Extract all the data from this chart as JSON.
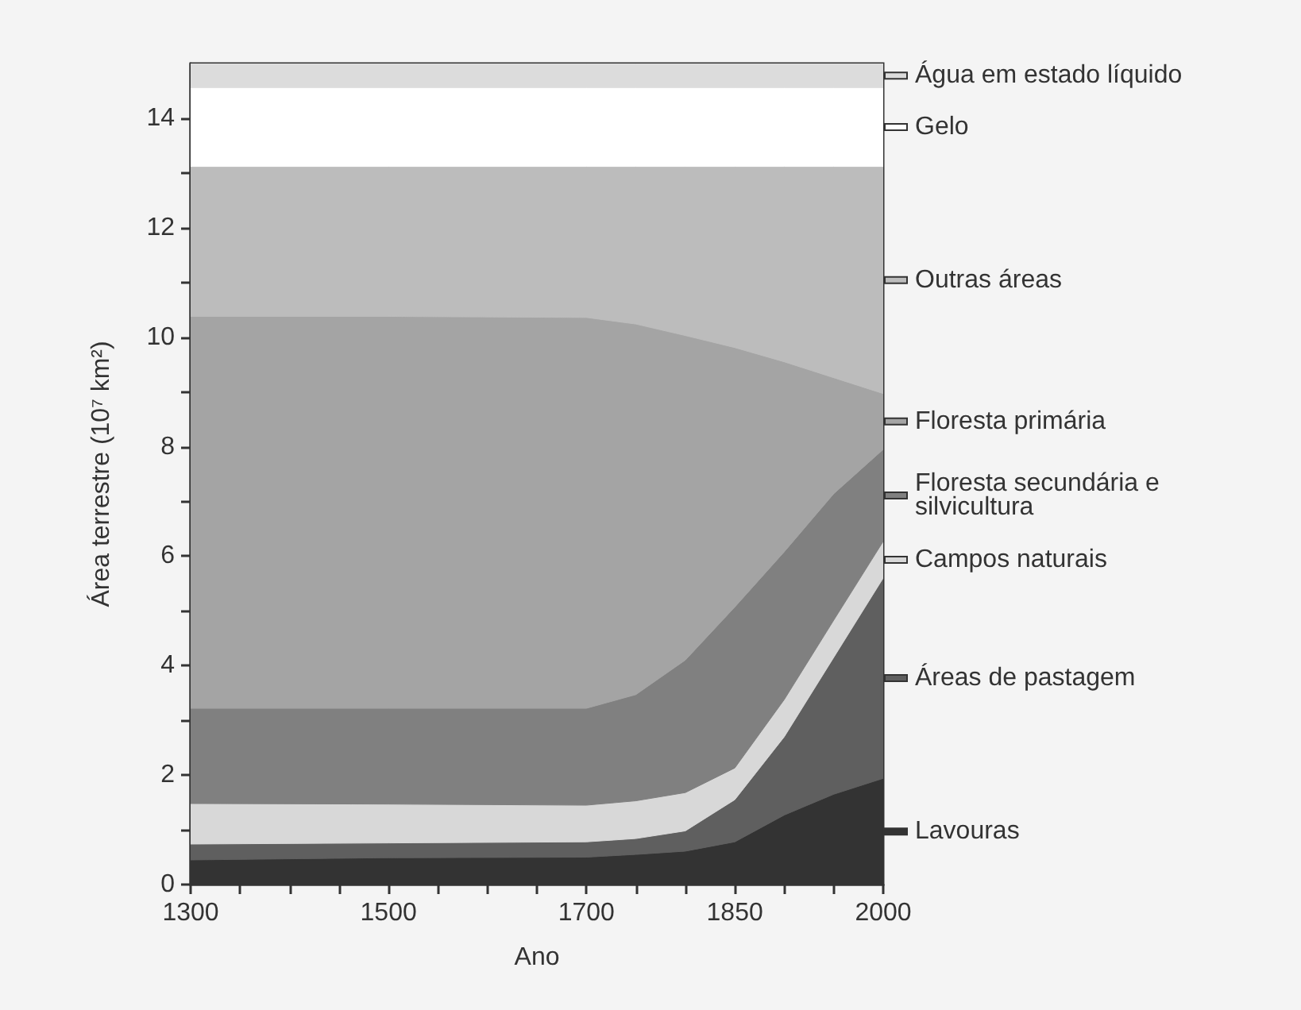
{
  "chart_data": {
    "type": "area",
    "stacked": true,
    "xlabel": "Ano",
    "ylabel": "Área terrestre (10⁷ km²)",
    "x": [
      1300,
      1500,
      1700,
      1750,
      1800,
      1850,
      1900,
      1950,
      2000
    ],
    "xlim": [
      1300,
      2000
    ],
    "xticks": [
      1300,
      {
        "value": 1350,
        "label": null
      },
      {
        "value": 1400,
        "label": null
      },
      {
        "value": 1450,
        "label": null
      },
      1500,
      {
        "value": 1550,
        "label": null
      },
      {
        "value": 1600,
        "label": null
      },
      {
        "value": 1650,
        "label": null
      },
      1700,
      {
        "value": 1750,
        "label": null
      },
      {
        "value": 1800,
        "label": null
      },
      1850,
      {
        "value": 1900,
        "label": null
      },
      {
        "value": 1950,
        "label": null
      },
      2000
    ],
    "ylim": [
      0,
      15
    ],
    "yticks": [
      0,
      {
        "value": 1,
        "label": null
      },
      2,
      {
        "value": 3,
        "label": null
      },
      4,
      {
        "value": 5,
        "label": null
      },
      6,
      {
        "value": 7,
        "label": null
      },
      8,
      {
        "value": 9,
        "label": null
      },
      10,
      {
        "value": 11,
        "label": null
      },
      12,
      {
        "value": 13,
        "label": null
      },
      14
    ],
    "grid": false,
    "legend": "right",
    "series": [
      {
        "name": "Lavouras",
        "color": "#333333",
        "values": [
          0.45,
          0.49,
          0.5,
          0.55,
          0.61,
          0.78,
          1.27,
          1.65,
          1.94
        ]
      },
      {
        "name": "Áreas de pastagem",
        "color": "#5f5f5f",
        "values": [
          0.29,
          0.27,
          0.28,
          0.29,
          0.37,
          0.77,
          1.43,
          2.5,
          3.66
        ]
      },
      {
        "name": "Campos naturais",
        "color": "#d8d8d8",
        "values": [
          0.74,
          0.71,
          0.67,
          0.69,
          0.7,
          0.58,
          0.68,
          0.68,
          0.67
        ]
      },
      {
        "name": "Floresta secundária e silvicultura",
        "color": "#808080",
        "values": [
          1.74,
          1.75,
          1.77,
          1.94,
          2.42,
          2.94,
          2.7,
          2.31,
          1.68
        ]
      },
      {
        "name": "Floresta primária",
        "color": "#a4a4a4",
        "values": [
          7.16,
          7.16,
          7.14,
          6.77,
          5.93,
          4.74,
          3.47,
          2.12,
          1.02
        ]
      },
      {
        "name": "Outras áreas",
        "color": "#bcbcbc",
        "values": [
          2.74,
          2.74,
          2.76,
          2.88,
          3.09,
          3.31,
          3.57,
          3.86,
          4.15
        ]
      },
      {
        "name": "Gelo",
        "color": "#ffffff",
        "values": [
          1.44,
          1.44,
          1.44,
          1.44,
          1.44,
          1.44,
          1.44,
          1.44,
          1.44
        ]
      },
      {
        "name": "Água em estado líquido",
        "color": "#dcdcdc",
        "values": [
          0.44,
          0.44,
          0.44,
          0.44,
          0.44,
          0.44,
          0.44,
          0.44,
          0.44
        ]
      }
    ]
  }
}
